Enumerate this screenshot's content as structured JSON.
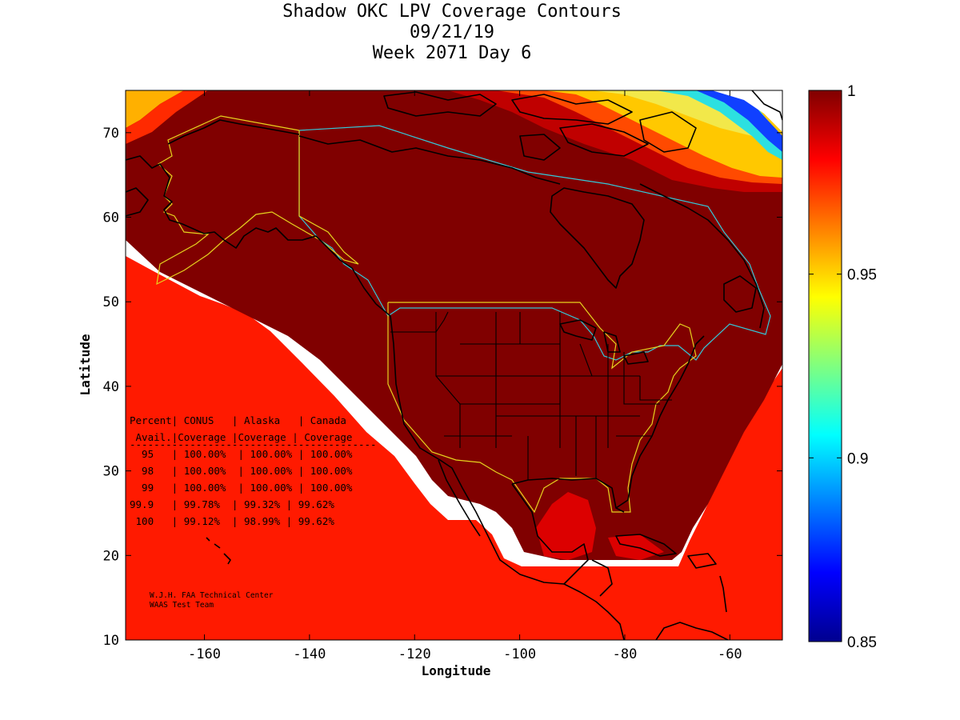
{
  "title": {
    "line1": "Shadow OKC LPV Coverage Contours",
    "line2": "09/21/19",
    "line3": "Week 2071 Day 6"
  },
  "axes": {
    "xlabel": "Longitude",
    "ylabel": "Latitude",
    "xlim": [
      -175,
      -50
    ],
    "ylim": [
      10,
      75
    ],
    "xticks": [
      -160,
      -140,
      -120,
      -100,
      -80,
      -60
    ],
    "yticks": [
      10,
      20,
      30,
      40,
      50,
      60,
      70
    ],
    "xtick_labels": [
      "-160",
      "-140",
      "-120",
      "-100",
      "-80",
      "-60"
    ],
    "ytick_labels": [
      "10",
      "20",
      "30",
      "40",
      "50",
      "60",
      "70"
    ]
  },
  "colorbar": {
    "min": 0.85,
    "max": 1,
    "ticks": [
      0.85,
      0.9,
      0.95,
      1
    ],
    "tick_labels": [
      "0.85",
      "0.9",
      "0.95",
      "1"
    ],
    "colormap": "jet"
  },
  "table": {
    "header1": "Percent| CONUS   | Alaska   | Canada",
    "header2": " Avail.|Coverage |Coverage | Coverage",
    "rule": "-----------------------------------------",
    "rows": [
      "  95   | 100.00%  | 100.00% | 100.00%",
      "  98   | 100.00%  | 100.00% | 100.00%",
      "  99   | 100.00%  | 100.00% | 100.00%",
      "99.9   | 99.78%  | 99.32% | 99.62%",
      " 100   | 99.12%  | 98.99% | 99.62%"
    ]
  },
  "coverage_table": {
    "columns": [
      "Percent Avail.",
      "CONUS Coverage",
      "Alaska Coverage",
      "Canada Coverage"
    ],
    "rows": [
      [
        "95",
        "100.00%",
        "100.00%",
        "100.00%"
      ],
      [
        "98",
        "100.00%",
        "100.00%",
        "100.00%"
      ],
      [
        "99",
        "100.00%",
        "100.00%",
        "100.00%"
      ],
      [
        "99.9",
        "99.78%",
        "99.32%",
        "99.62%"
      ],
      [
        "100",
        "99.12%",
        "98.99%",
        "99.62%"
      ]
    ]
  },
  "credit": {
    "line1": "W.J.H. FAA Technical Center",
    "line2": "WAAS Test Team"
  },
  "colors": {
    "coverage_full": "#800000",
    "region_alaska_conus": "#e6d31e",
    "region_canada": "#34c8d8",
    "coastline": "#000000"
  },
  "chart_data": {
    "type": "heatmap",
    "title": "Shadow OKC LPV Coverage Contours",
    "subtitle": [
      "09/21/19",
      "Week 2071 Day 6"
    ],
    "xlabel": "Longitude",
    "ylabel": "Latitude",
    "xlim": [
      -175,
      -50
    ],
    "ylim": [
      10,
      75
    ],
    "value_range": [
      0.85,
      1
    ],
    "colormap": "jet",
    "grid": false
  }
}
